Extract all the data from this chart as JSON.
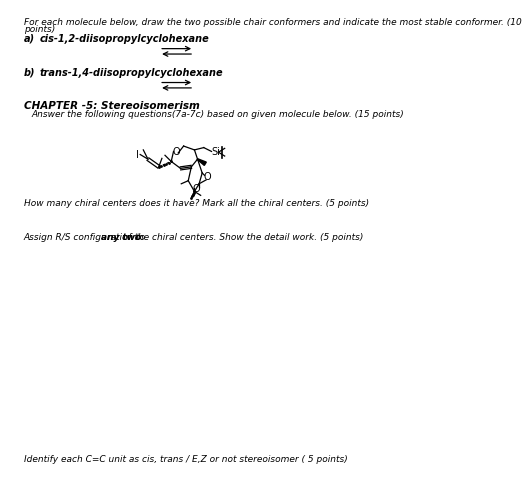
{
  "bg_color": "#ffffff",
  "title_text": "For each molecule below, draw the two possible chair conformers and indicate the most stable conformer. (10",
  "title_text2": "points)",
  "a_label_a": "a)",
  "a_label_b": "cis-1,2-diisopropylcyclohexane",
  "b_label_a": "b)",
  "b_label_b": "trans-1,4-diisopropylcyclohexane",
  "chapter_title": "CHAPTER -5: Stereoisomerism",
  "q_text": "Answer the following questions(7a-7c) based on given molecule below. (15 points)",
  "chiral_q": "How many chiral centers does it have? Mark all the chiral centers. (5 points)",
  "rs_q1": "Assign R/S configuration to ",
  "rs_q2": "any two",
  "rs_q3": " of the chiral centers. Show the detail work. (5 points)",
  "cc_q": "Identify each C=C unit as cis, trans / E,Z or not stereoisomer ( 5 points)",
  "font_size": 6.5
}
